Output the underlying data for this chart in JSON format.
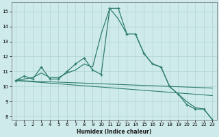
{
  "xlabel": "Humidex (Indice chaleur)",
  "bg_color": "#ceeaea",
  "grid_color": "#afd4d4",
  "line_color": "#2e7d6e",
  "xlim": [
    -0.5,
    23.5
  ],
  "ylim": [
    7.8,
    15.6
  ],
  "yticks": [
    8,
    9,
    10,
    11,
    12,
    13,
    14,
    15
  ],
  "xticks": [
    0,
    1,
    2,
    3,
    4,
    5,
    6,
    7,
    8,
    9,
    10,
    11,
    12,
    13,
    14,
    15,
    16,
    17,
    18,
    19,
    20,
    21,
    22,
    23
  ],
  "series": [
    {
      "x": [
        0,
        1,
        2,
        3,
        4,
        5,
        6,
        7,
        8,
        9,
        10,
        11,
        12,
        13,
        14,
        15,
        16,
        17,
        18,
        19,
        20,
        21,
        22,
        23
      ],
      "y": [
        10.4,
        10.7,
        10.5,
        11.3,
        10.5,
        10.5,
        11.0,
        11.5,
        11.9,
        11.1,
        10.8,
        15.2,
        15.2,
        13.5,
        13.5,
        12.2,
        11.5,
        11.3,
        10.0,
        9.5,
        8.8,
        8.5,
        8.5,
        7.8
      ],
      "marker": "+",
      "lw": 0.9
    },
    {
      "x": [
        0,
        1,
        2,
        3,
        4,
        5,
        6,
        7,
        8,
        9,
        10,
        11,
        12,
        13,
        14,
        15,
        16,
        17,
        18,
        19,
        20,
        21,
        22,
        23
      ],
      "y": [
        10.4,
        10.5,
        10.6,
        10.9,
        10.6,
        10.6,
        10.9,
        11.1,
        11.5,
        11.3,
        13.5,
        15.2,
        14.5,
        13.5,
        13.5,
        12.2,
        11.5,
        11.3,
        10.0,
        9.5,
        9.0,
        8.6,
        8.5,
        7.8
      ],
      "marker": null,
      "lw": 0.9
    },
    {
      "x": [
        0,
        23
      ],
      "y": [
        10.4,
        9.9
      ],
      "marker": null,
      "lw": 0.8
    },
    {
      "x": [
        0,
        23
      ],
      "y": [
        10.4,
        9.4
      ],
      "marker": null,
      "lw": 0.8
    }
  ]
}
